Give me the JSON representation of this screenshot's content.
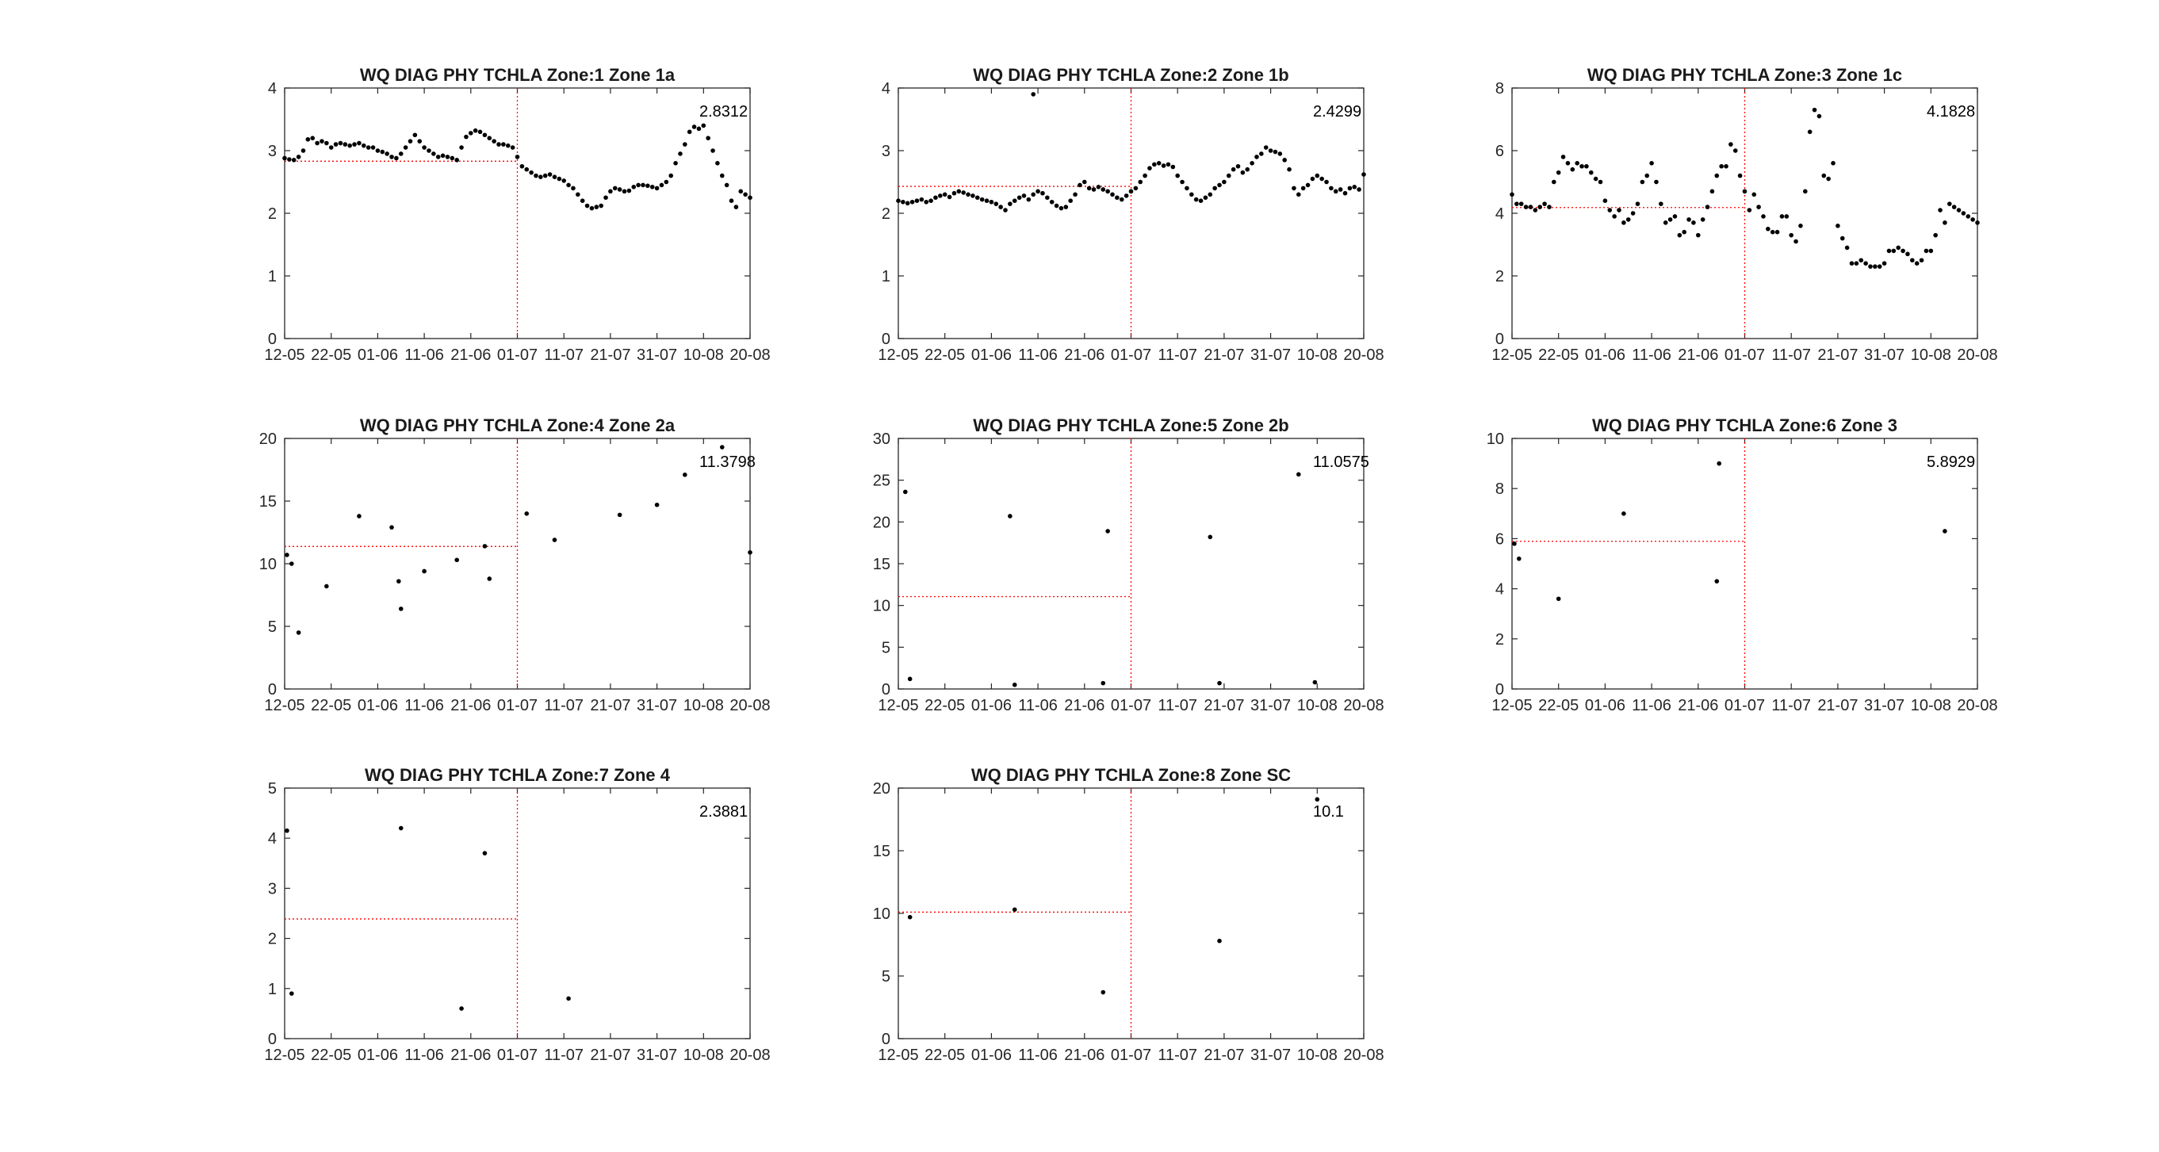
{
  "figure": {
    "background": "#ffffff"
  },
  "chart_data": [
    {
      "type": "scatter",
      "title": "WQ DIAG PHY TCHLA Zone:1 Zone 1a",
      "xlabel": "",
      "ylabel": "",
      "x_ticks": [
        "12-05",
        "22-05",
        "01-06",
        "11-06",
        "21-06",
        "01-07",
        "11-07",
        "21-07",
        "31-07",
        "10-08",
        "20-08"
      ],
      "xlim": [
        0,
        100
      ],
      "ylim": [
        0,
        4
      ],
      "y_ticks": [
        0,
        1,
        2,
        3,
        4
      ],
      "mean_value": 2.8312,
      "mean_label": "2.8312",
      "split_x": 50,
      "marker_color": "#000000",
      "reference_color": "#ff0000",
      "series": [
        {
          "x": [
            0,
            1,
            2,
            3,
            4,
            5,
            6,
            7,
            8,
            9,
            10,
            11,
            12,
            13,
            14,
            15,
            16,
            17,
            18,
            19,
            20,
            21,
            22,
            23,
            24,
            25,
            26,
            27,
            28,
            29,
            30,
            31,
            32,
            33,
            34,
            35,
            36,
            37,
            38,
            39,
            40,
            41,
            42,
            43,
            44,
            45,
            46,
            47,
            48,
            49,
            50,
            51,
            52,
            53,
            54,
            55,
            56,
            57,
            58,
            59,
            60,
            61,
            62,
            63,
            64,
            65,
            66,
            67,
            68,
            69,
            70,
            71,
            72,
            73,
            74,
            75,
            76,
            77,
            78,
            79,
            80,
            81,
            82,
            83,
            84,
            85,
            86,
            87,
            88,
            89,
            90,
            91,
            92,
            93,
            94,
            95,
            96,
            97,
            98,
            99,
            100
          ],
          "y": [
            2.88,
            2.86,
            2.85,
            2.9,
            3.0,
            3.18,
            3.2,
            3.12,
            3.15,
            3.12,
            3.05,
            3.1,
            3.12,
            3.1,
            3.08,
            3.1,
            3.12,
            3.08,
            3.05,
            3.05,
            3.0,
            2.98,
            2.95,
            2.9,
            2.88,
            2.95,
            3.05,
            3.15,
            3.25,
            3.15,
            3.05,
            3.0,
            2.95,
            2.9,
            2.92,
            2.9,
            2.88,
            2.85,
            3.05,
            3.22,
            3.28,
            3.32,
            3.3,
            3.25,
            3.2,
            3.15,
            3.1,
            3.1,
            3.08,
            3.05,
            2.9,
            2.75,
            2.7,
            2.65,
            2.6,
            2.58,
            2.6,
            2.62,
            2.58,
            2.55,
            2.52,
            2.45,
            2.4,
            2.3,
            2.2,
            2.12,
            2.08,
            2.1,
            2.12,
            2.25,
            2.35,
            2.4,
            2.38,
            2.35,
            2.36,
            2.42,
            2.45,
            2.45,
            2.44,
            2.42,
            2.4,
            2.45,
            2.5,
            2.6,
            2.8,
            2.95,
            3.1,
            3.3,
            3.38,
            3.35,
            3.4,
            3.2,
            3.0,
            2.8,
            2.6,
            2.45,
            2.2,
            2.1,
            2.35,
            2.3,
            2.25
          ]
        }
      ]
    },
    {
      "type": "scatter",
      "title": "WQ DIAG PHY TCHLA Zone:2 Zone 1b",
      "xlabel": "",
      "ylabel": "",
      "x_ticks": [
        "12-05",
        "22-05",
        "01-06",
        "11-06",
        "21-06",
        "01-07",
        "11-07",
        "21-07",
        "31-07",
        "10-08",
        "20-08"
      ],
      "xlim": [
        0,
        100
      ],
      "ylim": [
        0,
        4
      ],
      "y_ticks": [
        0,
        1,
        2,
        3,
        4
      ],
      "mean_value": 2.4299,
      "mean_label": "2.4299",
      "split_x": 50,
      "marker_color": "#000000",
      "reference_color": "#ff0000",
      "series": [
        {
          "x": [
            0,
            1,
            2,
            3,
            4,
            5,
            6,
            7,
            8,
            9,
            10,
            11,
            12,
            13,
            14,
            15,
            16,
            17,
            18,
            19,
            20,
            21,
            22,
            23,
            24,
            25,
            26,
            27,
            28,
            29,
            30,
            31,
            32,
            33,
            34,
            35,
            36,
            37,
            38,
            39,
            40,
            41,
            42,
            43,
            44,
            45,
            46,
            47,
            48,
            49,
            50,
            51,
            52,
            53,
            54,
            55,
            56,
            57,
            58,
            59,
            60,
            61,
            62,
            63,
            64,
            65,
            66,
            67,
            68,
            69,
            70,
            71,
            72,
            73,
            74,
            75,
            76,
            77,
            78,
            79,
            80,
            81,
            82,
            83,
            84,
            85,
            86,
            87,
            88,
            89,
            90,
            91,
            92,
            93,
            94,
            95,
            96,
            97,
            98,
            99,
            100,
            29
          ],
          "y": [
            2.2,
            2.18,
            2.16,
            2.18,
            2.2,
            2.22,
            2.18,
            2.2,
            2.25,
            2.28,
            2.3,
            2.26,
            2.32,
            2.35,
            2.33,
            2.3,
            2.28,
            2.25,
            2.22,
            2.2,
            2.18,
            2.15,
            2.1,
            2.05,
            2.15,
            2.2,
            2.25,
            2.28,
            2.22,
            2.3,
            2.35,
            2.32,
            2.25,
            2.18,
            2.12,
            2.08,
            2.1,
            2.2,
            2.3,
            2.45,
            2.5,
            2.4,
            2.38,
            2.42,
            2.38,
            2.35,
            2.3,
            2.25,
            2.22,
            2.28,
            2.35,
            2.4,
            2.5,
            2.6,
            2.72,
            2.78,
            2.8,
            2.76,
            2.78,
            2.74,
            2.6,
            2.5,
            2.4,
            2.3,
            2.22,
            2.2,
            2.25,
            2.3,
            2.4,
            2.45,
            2.5,
            2.6,
            2.7,
            2.75,
            2.65,
            2.7,
            2.8,
            2.9,
            2.95,
            3.05,
            3.0,
            2.98,
            2.95,
            2.85,
            2.7,
            2.4,
            2.3,
            2.4,
            2.45,
            2.55,
            2.6,
            2.55,
            2.5,
            2.4,
            2.35,
            2.38,
            2.32,
            2.4,
            2.42,
            2.38,
            2.62,
            3.9
          ]
        }
      ]
    },
    {
      "type": "scatter",
      "title": "WQ DIAG PHY TCHLA Zone:3 Zone 1c",
      "xlabel": "",
      "ylabel": "",
      "x_ticks": [
        "12-05",
        "22-05",
        "01-06",
        "11-06",
        "21-06",
        "01-07",
        "11-07",
        "21-07",
        "31-07",
        "10-08",
        "20-08"
      ],
      "xlim": [
        0,
        100
      ],
      "ylim": [
        0,
        8
      ],
      "y_ticks": [
        0,
        2,
        4,
        6,
        8
      ],
      "mean_value": 4.1828,
      "mean_label": "4.1828",
      "split_x": 50,
      "marker_color": "#000000",
      "reference_color": "#ff0000",
      "series": [
        {
          "x": [
            0,
            1,
            2,
            3,
            4,
            5,
            6,
            7,
            8,
            9,
            10,
            11,
            12,
            13,
            14,
            15,
            16,
            17,
            18,
            19,
            20,
            21,
            22,
            23,
            24,
            25,
            26,
            27,
            28,
            29,
            30,
            31,
            32,
            33,
            34,
            35,
            36,
            37,
            38,
            39,
            40,
            41,
            42,
            43,
            44,
            45,
            46,
            47,
            48,
            49,
            50,
            51,
            52,
            53,
            54,
            55,
            56,
            57,
            58,
            59,
            60,
            61,
            62,
            63,
            64,
            65,
            66,
            67,
            68,
            69,
            70,
            71,
            72,
            73,
            74,
            75,
            76,
            77,
            78,
            79,
            80,
            81,
            82,
            83,
            84,
            85,
            86,
            87,
            88,
            89,
            90,
            91,
            92,
            93,
            94,
            95,
            96,
            97,
            98,
            99,
            100
          ],
          "y": [
            4.6,
            4.3,
            4.3,
            4.2,
            4.2,
            4.1,
            4.2,
            4.3,
            4.2,
            5.0,
            5.3,
            5.8,
            5.6,
            5.4,
            5.6,
            5.5,
            5.5,
            5.3,
            5.1,
            5.0,
            4.4,
            4.1,
            3.9,
            4.1,
            3.7,
            3.8,
            4.0,
            4.3,
            5.0,
            5.2,
            5.6,
            5.0,
            4.3,
            3.7,
            3.8,
            3.9,
            3.3,
            3.4,
            3.8,
            3.7,
            3.3,
            3.8,
            4.2,
            4.7,
            5.2,
            5.5,
            5.5,
            6.2,
            6.0,
            5.2,
            4.7,
            4.1,
            4.6,
            4.2,
            3.9,
            3.5,
            3.4,
            3.4,
            3.9,
            3.9,
            3.3,
            3.1,
            3.6,
            4.7,
            6.6,
            7.3,
            7.1,
            5.2,
            5.1,
            5.6,
            3.6,
            3.2,
            2.9,
            2.4,
            2.4,
            2.5,
            2.4,
            2.3,
            2.3,
            2.3,
            2.4,
            2.8,
            2.8,
            2.9,
            2.8,
            2.7,
            2.5,
            2.4,
            2.5,
            2.8,
            2.8,
            3.3,
            4.1,
            3.7,
            4.3,
            4.2,
            4.1,
            4.0,
            3.9,
            3.8,
            3.7
          ]
        }
      ]
    },
    {
      "type": "scatter",
      "title": "WQ DIAG PHY TCHLA Zone:4 Zone 2a",
      "xlabel": "",
      "ylabel": "",
      "x_ticks": [
        "12-05",
        "22-05",
        "01-06",
        "11-06",
        "21-06",
        "01-07",
        "11-07",
        "21-07",
        "31-07",
        "10-08",
        "20-08"
      ],
      "xlim": [
        0,
        100
      ],
      "ylim": [
        0,
        20
      ],
      "y_ticks": [
        0,
        5,
        10,
        15,
        20
      ],
      "mean_value": 11.3798,
      "mean_label": "11.3798",
      "split_x": 50,
      "marker_color": "#000000",
      "reference_color": "#ff0000",
      "series": [
        {
          "x": [
            0.5,
            1.5,
            3,
            9,
            16,
            23,
            24.5,
            25,
            30,
            37,
            43,
            44,
            52,
            58,
            72,
            80,
            86,
            94,
            101
          ],
          "y": [
            10.7,
            10.0,
            4.5,
            8.2,
            13.8,
            12.9,
            8.6,
            6.4,
            9.4,
            10.3,
            11.4,
            8.8,
            14.0,
            11.9,
            13.9,
            14.7,
            17.1,
            19.3,
            10.9
          ]
        }
      ]
    },
    {
      "type": "scatter",
      "title": "WQ DIAG PHY TCHLA Zone:5 Zone 2b",
      "xlabel": "",
      "ylabel": "",
      "x_ticks": [
        "12-05",
        "22-05",
        "01-06",
        "11-06",
        "21-06",
        "01-07",
        "11-07",
        "21-07",
        "31-07",
        "10-08",
        "20-08"
      ],
      "xlim": [
        0,
        100
      ],
      "ylim": [
        0,
        30
      ],
      "y_ticks": [
        0,
        5,
        10,
        15,
        20,
        25,
        30
      ],
      "mean_value": 11.0575,
      "mean_label": "11.0575",
      "split_x": 50,
      "marker_color": "#000000",
      "reference_color": "#ff0000",
      "series": [
        {
          "x": [
            1.5,
            2.5,
            24,
            25,
            44,
            45,
            67,
            69,
            86,
            89.5
          ],
          "y": [
            23.6,
            1.2,
            20.7,
            0.5,
            0.7,
            18.9,
            18.2,
            0.7,
            25.7,
            0.8
          ]
        }
      ]
    },
    {
      "type": "scatter",
      "title": "WQ DIAG PHY TCHLA Zone:6 Zone 3",
      "xlabel": "",
      "ylabel": "",
      "x_ticks": [
        "12-05",
        "22-05",
        "01-06",
        "11-06",
        "21-06",
        "01-07",
        "11-07",
        "21-07",
        "31-07",
        "10-08",
        "20-08"
      ],
      "xlim": [
        0,
        100
      ],
      "ylim": [
        0,
        10
      ],
      "y_ticks": [
        0,
        2,
        4,
        6,
        8,
        10
      ],
      "mean_value": 5.8929,
      "mean_label": "5.8929",
      "split_x": 50,
      "marker_color": "#000000",
      "reference_color": "#ff0000",
      "series": [
        {
          "x": [
            0.5,
            1.5,
            10,
            24,
            44,
            44.5,
            93
          ],
          "y": [
            5.8,
            5.2,
            3.6,
            7.0,
            4.3,
            9.0,
            6.3
          ]
        }
      ]
    },
    {
      "type": "scatter",
      "title": "WQ DIAG PHY TCHLA Zone:7 Zone 4",
      "xlabel": "",
      "ylabel": "",
      "x_ticks": [
        "12-05",
        "22-05",
        "01-06",
        "11-06",
        "21-06",
        "01-07",
        "11-07",
        "21-07",
        "31-07",
        "10-08",
        "20-08"
      ],
      "xlim": [
        0,
        100
      ],
      "ylim": [
        0,
        5
      ],
      "y_ticks": [
        0,
        1,
        2,
        3,
        4,
        5
      ],
      "mean_value": 2.3881,
      "mean_label": "2.3881",
      "split_x": 50,
      "marker_color": "#000000",
      "reference_color": "#ff0000",
      "series": [
        {
          "x": [
            0.5,
            1.5,
            25,
            38,
            43,
            61
          ],
          "y": [
            4.15,
            0.9,
            4.2,
            0.6,
            3.7,
            0.8
          ]
        }
      ]
    },
    {
      "type": "scatter",
      "title": "WQ DIAG PHY TCHLA Zone:8 Zone SC",
      "xlabel": "",
      "ylabel": "",
      "x_ticks": [
        "12-05",
        "22-05",
        "01-06",
        "11-06",
        "21-06",
        "01-07",
        "11-07",
        "21-07",
        "31-07",
        "10-08",
        "20-08"
      ],
      "xlim": [
        0,
        100
      ],
      "ylim": [
        0,
        20
      ],
      "y_ticks": [
        0,
        5,
        10,
        15,
        20
      ],
      "mean_value": 10.1,
      "mean_label": "10.1",
      "split_x": 50,
      "marker_color": "#000000",
      "reference_color": "#ff0000",
      "series": [
        {
          "x": [
            2.5,
            25,
            44,
            69,
            90
          ],
          "y": [
            9.7,
            10.3,
            3.7,
            7.8,
            19.1
          ]
        }
      ]
    }
  ]
}
